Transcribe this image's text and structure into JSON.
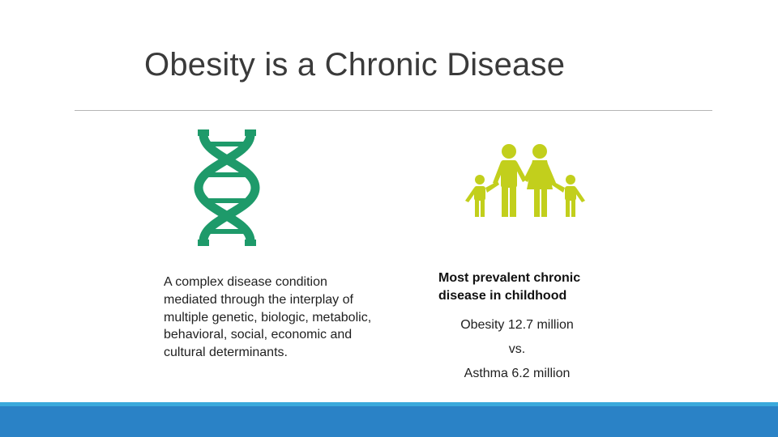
{
  "slide": {
    "title": "Obesity is a Chronic Disease",
    "left_text": "A complex disease condition mediated through the interplay of multiple genetic, biologic, metabolic, behavioral, social, economic and cultural determinants.",
    "right_heading": "Most prevalent chronic disease in childhood",
    "stats": [
      "Obesity 12.7 million",
      "vs.",
      "Asthma 6.2 million"
    ]
  },
  "icons": {
    "left": "dna-icon",
    "right": "family-icon"
  },
  "colors": {
    "dna": "#1e9a6a",
    "family": "#c2cf1c",
    "footer": "#2a82c6",
    "footer_accent": "#3aa9dc"
  }
}
